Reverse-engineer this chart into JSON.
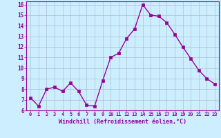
{
  "x": [
    0,
    1,
    2,
    3,
    4,
    5,
    6,
    7,
    8,
    9,
    10,
    11,
    12,
    13,
    14,
    15,
    16,
    17,
    18,
    19,
    20,
    21,
    22,
    23
  ],
  "y": [
    7.2,
    6.4,
    8.0,
    8.2,
    7.8,
    8.6,
    7.8,
    6.5,
    6.4,
    8.8,
    11.0,
    11.4,
    12.8,
    13.7,
    16.0,
    15.0,
    14.9,
    14.3,
    13.2,
    12.0,
    10.9,
    9.8,
    9.0,
    8.5
  ],
  "xlim": [
    -0.5,
    23.5
  ],
  "ylim": [
    6,
    16
  ],
  "yticks": [
    6,
    7,
    8,
    9,
    10,
    11,
    12,
    13,
    14,
    15,
    16
  ],
  "xticks": [
    0,
    1,
    2,
    3,
    4,
    5,
    6,
    7,
    8,
    9,
    10,
    11,
    12,
    13,
    14,
    15,
    16,
    17,
    18,
    19,
    20,
    21,
    22,
    23
  ],
  "xlabel": "Windchill (Refroidissement éolien,°C)",
  "line_color": "#990099",
  "marker_color": "#990099",
  "bg_color": "#cceeff",
  "grid_color": "#aabbcc",
  "axis_label_color": "#990099",
  "tick_label_color": "#990099",
  "spine_color": "#990099"
}
